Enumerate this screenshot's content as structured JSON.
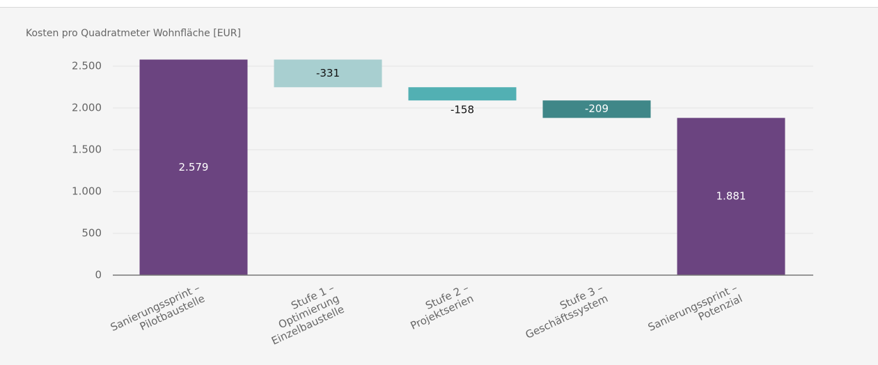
{
  "chart_data": {
    "type": "waterfall",
    "title": "Kosten pro Quadratmeter Wohnfläche [EUR]",
    "categories": [
      [
        "Sanierungssprint –",
        "Pilotbaustelle"
      ],
      [
        "Stufe 1 –",
        "Optimierung",
        "Einzelbaustelle"
      ],
      [
        "Stufe 2 –",
        "Projektserien"
      ],
      [
        "Stufe 3 –",
        "Geschäftssystem"
      ],
      [
        "Sanierungssprint –",
        "Potenzial"
      ]
    ],
    "values": [
      2579,
      -331,
      -158,
      -209,
      1881
    ],
    "value_labels": [
      "2.579",
      "-331",
      "-158",
      "-209",
      "1.881"
    ],
    "totals": [
      true,
      false,
      false,
      false,
      true
    ],
    "colors": [
      "#6b4480",
      "#a8cfd0",
      "#52b0b3",
      "#3f8788",
      "#6b4480"
    ],
    "ylim": [
      0,
      2500
    ],
    "yticks": [
      0,
      500,
      {
        "value": 1000,
        "label": "1.000"
      },
      {
        "value": 1500,
        "label": "1.500"
      },
      {
        "value": 2000,
        "label": "2.000"
      },
      {
        "value": 2500,
        "label": "2.500"
      }
    ],
    "grid": true
  }
}
